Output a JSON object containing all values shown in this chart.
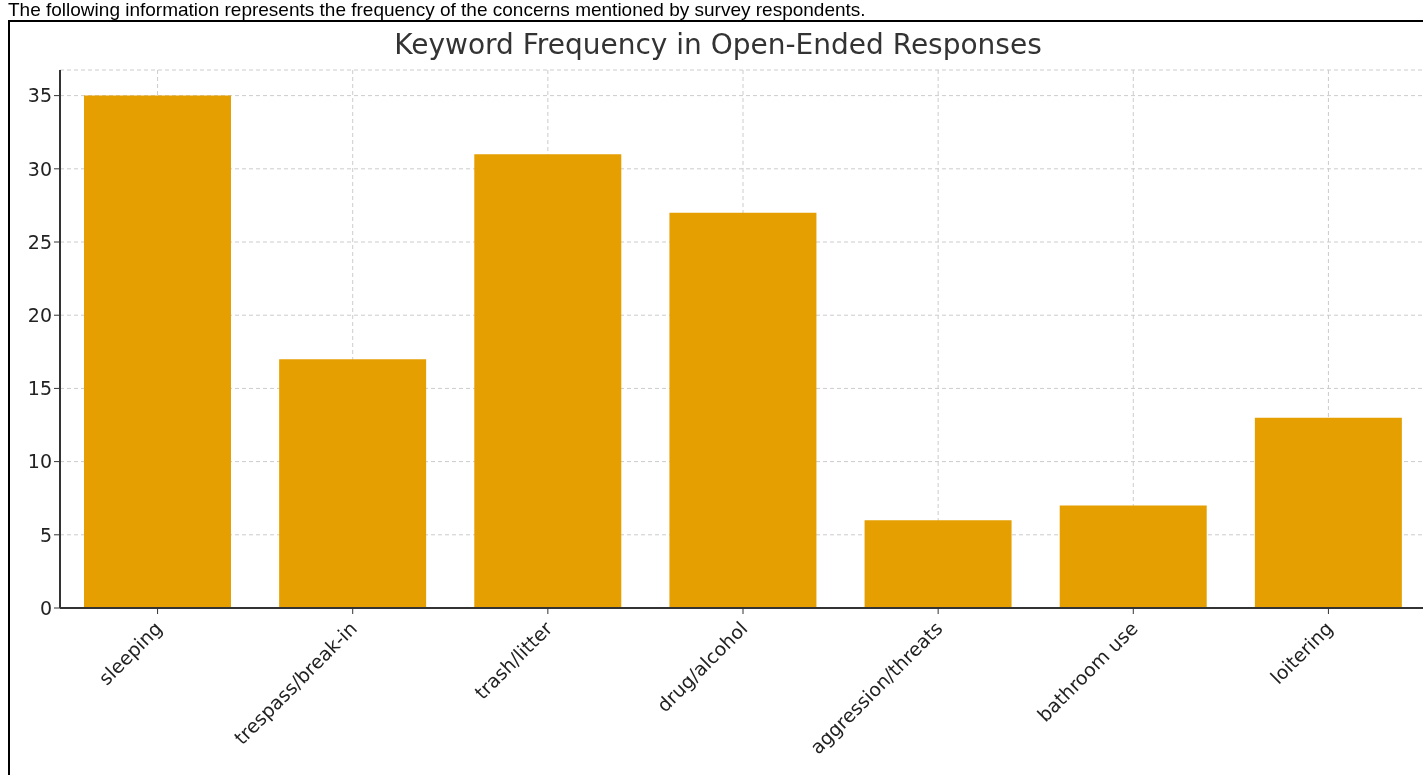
{
  "chart_data": {
    "type": "bar",
    "title": "Keyword Frequency in Open-Ended Responses",
    "annotations": [
      "The following information represents the frequency of the concerns mentioned by survey respondents."
    ],
    "categories": [
      "sleeping",
      "trespass/break-in",
      "trash/litter",
      "drug/alcohol",
      "aggression/threats",
      "bathroom use",
      "loitering"
    ],
    "values": [
      35,
      17,
      31,
      27,
      6,
      7,
      13
    ],
    "color": "#e69f00",
    "ylim": [
      0,
      36.75
    ],
    "yticks": [
      0,
      5,
      10,
      15,
      20,
      25,
      30,
      35
    ],
    "grid": true
  }
}
